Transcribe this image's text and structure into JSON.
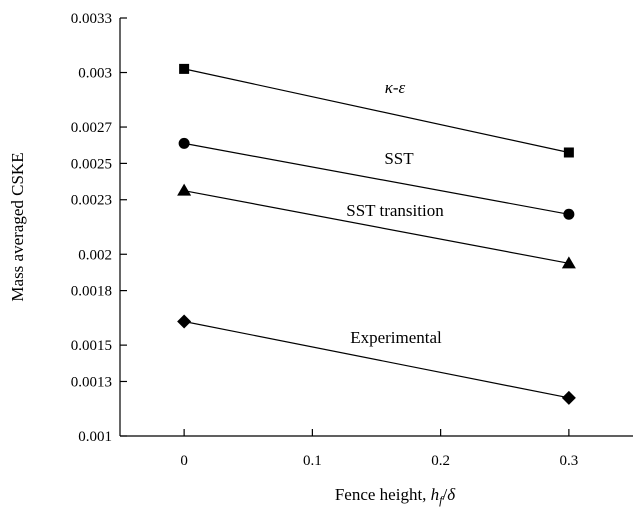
{
  "chart_data": {
    "type": "line",
    "title": "",
    "xlabel_main": "Fence height, ",
    "xlabel_var_h": "h",
    "xlabel_sub": "f",
    "xlabel_slash": "/",
    "xlabel_delta": "δ",
    "ylabel": "Mass averaged CSKE",
    "xlim": [
      -0.05,
      0.35
    ],
    "ylim": [
      0.001,
      0.0033
    ],
    "x_ticks": [
      0,
      0.1,
      0.2,
      0.3
    ],
    "x_tick_labels": [
      "0",
      "0.1",
      "0.2",
      "0.3"
    ],
    "y_ticks": [
      0.001,
      0.0013,
      0.0015,
      0.0018,
      0.002,
      0.0023,
      0.0025,
      0.0027,
      0.003,
      0.0033
    ],
    "y_tick_labels": [
      "0.001",
      "0.0013",
      "0.0015",
      "0.0018",
      "0.002",
      "0.0023",
      "0.0025",
      "0.0027",
      "0.003",
      "0.0033"
    ],
    "grid": false,
    "legend": "none",
    "series": [
      {
        "name": "κ-ε",
        "marker": "square",
        "x": [
          0,
          0.3
        ],
        "y": [
          0.00302,
          0.00256
        ]
      },
      {
        "name": "SST",
        "marker": "circle",
        "x": [
          0,
          0.3
        ],
        "y": [
          0.00261,
          0.00222
        ]
      },
      {
        "name": "SST transition",
        "marker": "triangle",
        "x": [
          0,
          0.3
        ],
        "y": [
          0.00235,
          0.00195
        ]
      },
      {
        "name": "Experimental",
        "marker": "diamond",
        "x": [
          0,
          0.3
        ],
        "y": [
          0.00163,
          0.00121
        ]
      }
    ]
  }
}
